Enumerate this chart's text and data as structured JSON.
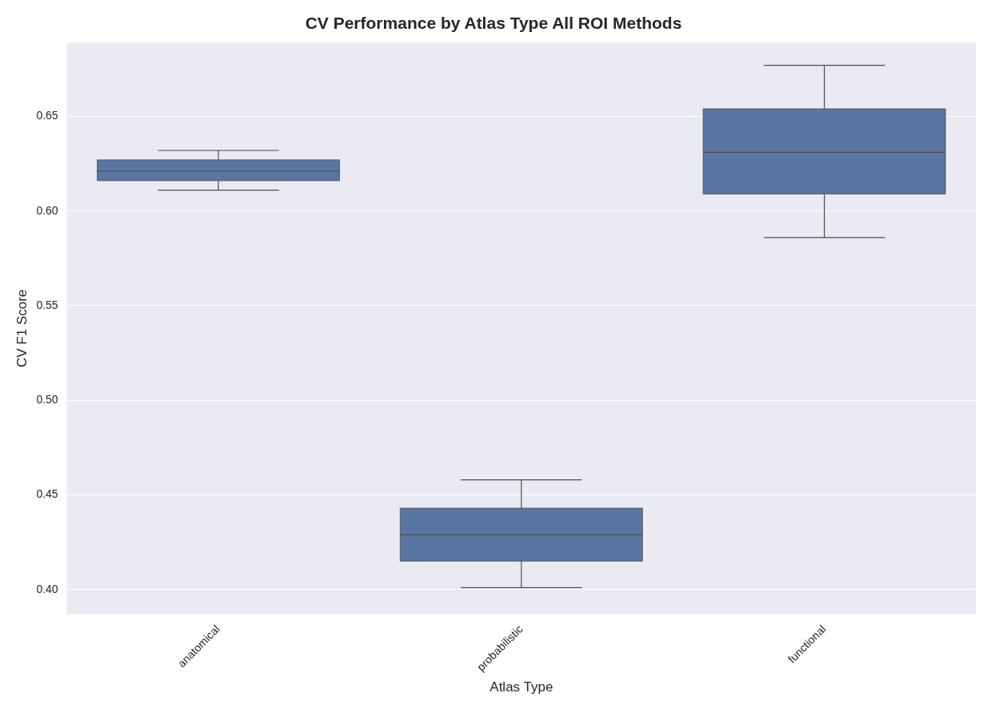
{
  "chart_data": {
    "type": "box",
    "title": "CV Performance by Atlas Type All ROI Methods",
    "xlabel": "Atlas Type",
    "ylabel": "CV F1 Score",
    "categories": [
      "anatomical",
      "probabilistic",
      "functional"
    ],
    "boxes": [
      {
        "low": 0.611,
        "q1": 0.616,
        "median": 0.621,
        "q3": 0.627,
        "high": 0.632
      },
      {
        "low": 0.401,
        "q1": 0.415,
        "median": 0.429,
        "q3": 0.443,
        "high": 0.458
      },
      {
        "low": 0.586,
        "q1": 0.609,
        "median": 0.631,
        "q3": 0.654,
        "high": 0.677
      }
    ],
    "color": "#5875a4",
    "ylim": [
      0.387,
      0.689
    ],
    "yticks": [
      {
        "value": 0.4,
        "label": "0.40"
      },
      {
        "value": 0.45,
        "label": "0.45"
      },
      {
        "value": 0.5,
        "label": "0.50"
      },
      {
        "value": 0.55,
        "label": "0.55"
      },
      {
        "value": 0.6,
        "label": "0.60"
      },
      {
        "value": 0.65,
        "label": "0.65"
      }
    ],
    "grid": "y",
    "legend": false
  }
}
